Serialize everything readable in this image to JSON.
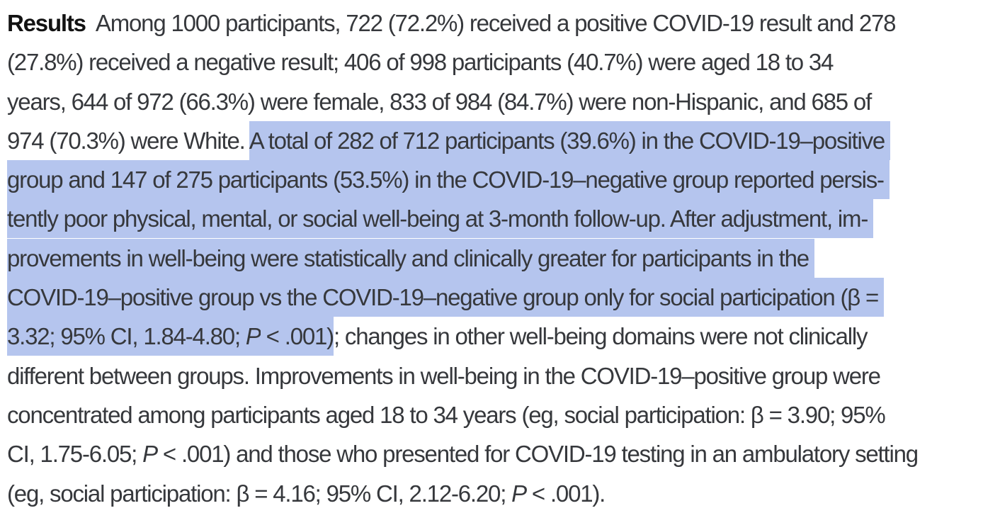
{
  "page": {
    "background": "#ffffff",
    "text_color": "#36383c",
    "bold_text_color": "#121212",
    "highlight_color": "#b5c5ee"
  },
  "results_paragraph": {
    "section_label": "Results",
    "lines": [
      {
        "segments": [
          {
            "text": "Results",
            "style": "bold"
          },
          {
            "text": "  Among 1000 participants, 722 (72.2%) received a positive COVID-19 result and 278",
            "style": "normal"
          }
        ]
      },
      {
        "segments": [
          {
            "text": "(27.8%) received a negative result; 406 of 998 participants (40.7%) were aged 18 to 34",
            "style": "normal"
          }
        ]
      },
      {
        "segments": [
          {
            "text": "years, 644 of 972 (66.3%) were female, 833 of 984 (84.7%) were non-Hispanic, and 685 of",
            "style": "normal"
          }
        ]
      },
      {
        "segments": [
          {
            "text": "974 (70.3%) were White. ",
            "style": "normal"
          },
          {
            "text": "A total of 282 of 712 participants (39.6%) in the COVID-19–positive ",
            "style": "highlight"
          }
        ]
      },
      {
        "segments": [
          {
            "text": "group and 147 of 275 participants (53.5%) in the COVID-19–negative group reported persis- ",
            "style": "highlight"
          }
        ]
      },
      {
        "segments": [
          {
            "text": "tently poor physical, mental, or social well-being at 3-month follow-up. After adjustment, im- ",
            "style": "highlight"
          }
        ]
      },
      {
        "segments": [
          {
            "text": "provements in well-being were statistically and clinically greater for participants in the ",
            "style": "highlight"
          }
        ]
      },
      {
        "segments": [
          {
            "text": "COVID-19–positive group vs the COVID-19–negative group only for social participation (β = ",
            "style": "highlight"
          }
        ]
      },
      {
        "segments": [
          {
            "text": "3.32; 95% CI, 1.84-4.80; ",
            "style": "highlight"
          },
          {
            "text": "P",
            "style": "highlight-italic"
          },
          {
            "text": " < .001)",
            "style": "highlight"
          },
          {
            "text": "; changes in other well-being domains were not clinically",
            "style": "normal"
          }
        ]
      },
      {
        "segments": [
          {
            "text": "different between groups. Improvements in well-being in the COVID-19–positive group were",
            "style": "normal"
          }
        ]
      },
      {
        "segments": [
          {
            "text": "concentrated among participants aged 18 to 34 years (eg, social participation: β = 3.90; 95%",
            "style": "normal"
          }
        ]
      },
      {
        "segments": [
          {
            "text": "CI, 1.75-6.05; ",
            "style": "normal"
          },
          {
            "text": "P",
            "style": "italic"
          },
          {
            "text": " < .001) and those who presented for COVID-19 testing in an ambulatory setting",
            "style": "normal"
          }
        ]
      },
      {
        "segments": [
          {
            "text": "(eg, social participation: β = 4.16; 95% CI, 2.12-6.20; ",
            "style": "normal"
          },
          {
            "text": "P",
            "style": "italic"
          },
          {
            "text": " < .001).",
            "style": "normal"
          }
        ]
      }
    ]
  }
}
